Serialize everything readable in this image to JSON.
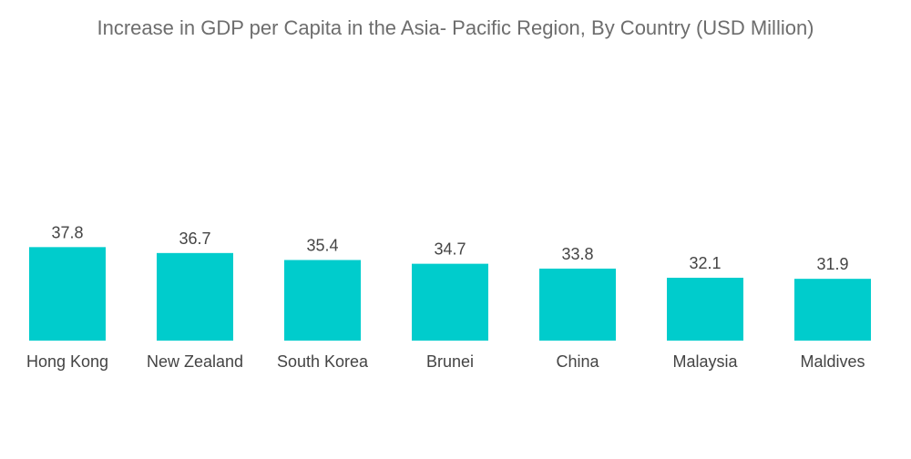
{
  "chart_data": {
    "type": "bar",
    "title": "Increase in GDP per Capita in the Asia- Pacific Region, By Country (USD Million)",
    "categories": [
      "Hong Kong",
      "New Zealand",
      "South Korea",
      "Brunei",
      "China",
      "Malaysia",
      "Maldives"
    ],
    "values": [
      37.8,
      36.7,
      35.4,
      34.7,
      33.8,
      32.1,
      31.9
    ],
    "value_labels": [
      "37.8",
      "36.7",
      "35.4",
      "34.7",
      "33.8",
      "32.1",
      "31.9"
    ],
    "xlabel": "",
    "ylabel": "",
    "grid": false,
    "legend": "none",
    "bar_color": "#00CCCC"
  }
}
